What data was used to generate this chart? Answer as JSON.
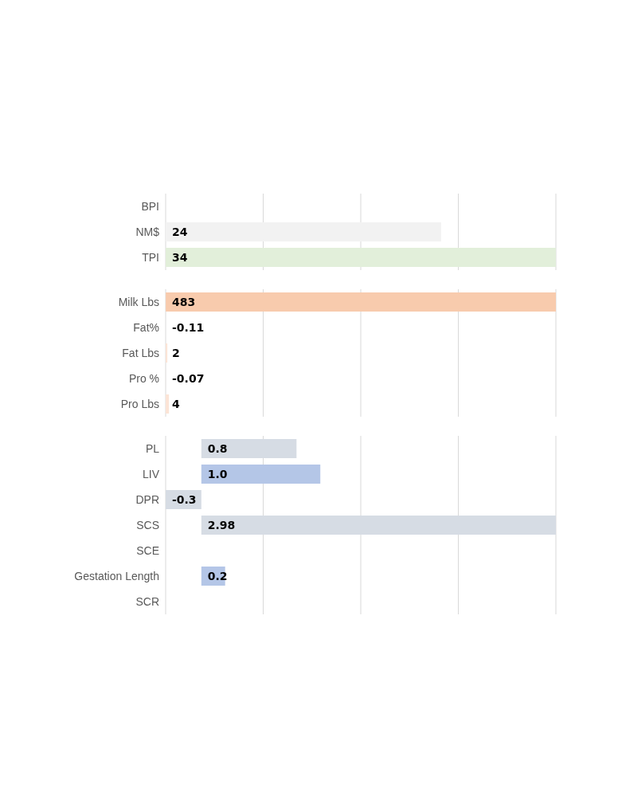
{
  "chart_data": [
    {
      "type": "bar",
      "orientation": "horizontal",
      "grid": "x",
      "categories": [
        "BPI",
        "NM$",
        "TPI"
      ],
      "values": [
        null,
        24,
        34
      ],
      "value_labels": [
        null,
        "24",
        "34"
      ],
      "colors": [
        "#f2f2f2",
        "#f2f2f2",
        "#e2efda"
      ]
    },
    {
      "type": "bar",
      "orientation": "horizontal",
      "grid": "x",
      "categories": [
        "Milk Lbs",
        "Fat%",
        "Fat Lbs",
        "Pro %",
        "Pro Lbs"
      ],
      "values": [
        483,
        -0.11,
        2,
        -0.07,
        4
      ],
      "value_labels": [
        "483",
        "-0.11",
        "2",
        "-0.07",
        "4"
      ],
      "colors": [
        "#f8cbad",
        "#f2f2f2",
        "#fce4d6",
        "#fce4d6",
        "#fce4d6"
      ]
    },
    {
      "type": "bar",
      "orientation": "horizontal",
      "grid": "x",
      "categories": [
        "PL",
        "LIV",
        "DPR",
        "SCS",
        "SCE",
        "Gestation Length",
        "SCR"
      ],
      "values": [
        0.8,
        1.0,
        -0.3,
        2.98,
        null,
        0.2,
        null
      ],
      "value_labels": [
        "0.8",
        "1.0",
        "-0.3",
        "2.98",
        null,
        "0.2",
        null
      ],
      "colors": [
        "#d6dce4",
        "#b4c6e7",
        "#d6dce4",
        "#d6dce4",
        "#d6dce4",
        "#b4c6e7",
        "#d6dce4"
      ]
    }
  ]
}
